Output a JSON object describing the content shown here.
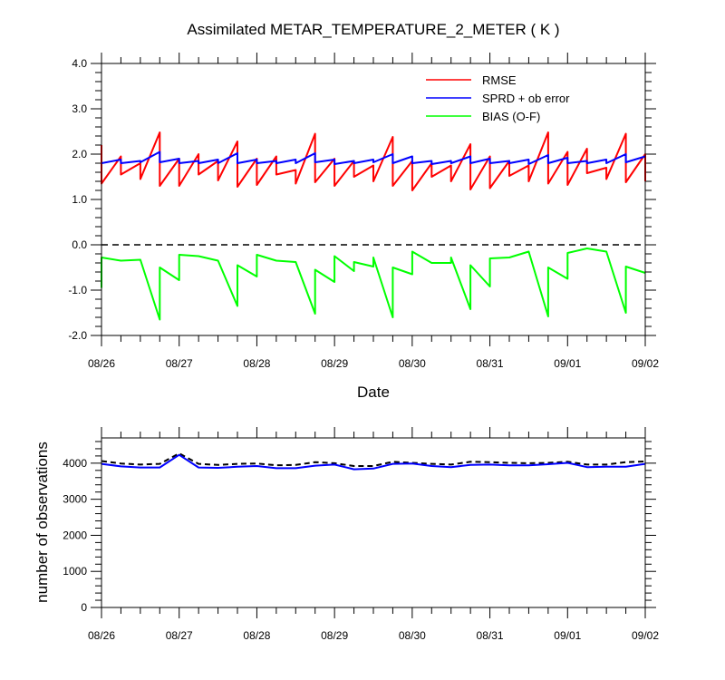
{
  "title": "Assimilated METAR_TEMPERATURE_2_METER ( K )",
  "chart_data": [
    {
      "type": "line",
      "xlabel": "Date",
      "ylabel": "",
      "xlim": [
        "08/26",
        "09/02"
      ],
      "ylim": [
        -2.0,
        4.0
      ],
      "yticks": [
        "4.0",
        "3.0",
        "2.0",
        "1.0",
        "0.0",
        "-1.0",
        "-2.0"
      ],
      "xticks": [
        "08/26",
        "08/27",
        "08/28",
        "08/29",
        "08/30",
        "08/31",
        "09/01",
        "09/02"
      ],
      "legend_position": "top-right",
      "reference_line": {
        "y": 0.0,
        "style": "dashed",
        "color": "#000000"
      },
      "series": [
        {
          "name": "RMSE",
          "color": "#ff0000",
          "points": [
            [
              "08/26 00Z",
              2.2
            ],
            [
              "08/26 00Z",
              1.35
            ],
            [
              "08/26 06Z",
              1.95
            ],
            [
              "08/26 06Z",
              1.55
            ],
            [
              "08/26 12Z",
              1.8
            ],
            [
              "08/26 12Z",
              1.45
            ],
            [
              "08/26 18Z",
              2.48
            ],
            [
              "08/26 18Z",
              1.3
            ],
            [
              "08/27 00Z",
              1.9
            ],
            [
              "08/27 00Z",
              1.3
            ],
            [
              "08/27 06Z",
              2.0
            ],
            [
              "08/27 06Z",
              1.55
            ],
            [
              "08/27 12Z",
              1.85
            ],
            [
              "08/27 12Z",
              1.42
            ],
            [
              "08/27 18Z",
              2.28
            ],
            [
              "08/27 18Z",
              1.28
            ],
            [
              "08/28 00Z",
              1.9
            ],
            [
              "08/28 00Z",
              1.32
            ],
            [
              "08/28 06Z",
              1.95
            ],
            [
              "08/28 06Z",
              1.55
            ],
            [
              "08/28 12Z",
              1.65
            ],
            [
              "08/28 12Z",
              1.35
            ],
            [
              "08/28 18Z",
              2.45
            ],
            [
              "08/28 18Z",
              1.38
            ],
            [
              "08/29 00Z",
              1.9
            ],
            [
              "08/29 00Z",
              1.3
            ],
            [
              "08/29 06Z",
              1.85
            ],
            [
              "08/29 06Z",
              1.5
            ],
            [
              "08/29 12Z",
              1.75
            ],
            [
              "08/29 12Z",
              1.4
            ],
            [
              "08/29 18Z",
              2.38
            ],
            [
              "08/29 18Z",
              1.3
            ],
            [
              "08/30 00Z",
              1.85
            ],
            [
              "08/30 00Z",
              1.2
            ],
            [
              "08/30 06Z",
              1.8
            ],
            [
              "08/30 06Z",
              1.5
            ],
            [
              "08/30 12Z",
              1.75
            ],
            [
              "08/30 12Z",
              1.4
            ],
            [
              "08/30 18Z",
              2.22
            ],
            [
              "08/30 18Z",
              1.22
            ],
            [
              "08/31 00Z",
              1.95
            ],
            [
              "08/31 00Z",
              1.25
            ],
            [
              "08/31 06Z",
              1.85
            ],
            [
              "08/31 06Z",
              1.52
            ],
            [
              "08/31 12Z",
              1.75
            ],
            [
              "08/31 12Z",
              1.4
            ],
            [
              "08/31 18Z",
              2.48
            ],
            [
              "08/31 18Z",
              1.35
            ],
            [
              "09/01 00Z",
              2.05
            ],
            [
              "09/01 00Z",
              1.32
            ],
            [
              "09/01 06Z",
              2.12
            ],
            [
              "09/01 06Z",
              1.58
            ],
            [
              "09/01 12Z",
              1.7
            ],
            [
              "09/01 12Z",
              1.45
            ],
            [
              "09/01 18Z",
              2.45
            ],
            [
              "09/01 18Z",
              1.38
            ],
            [
              "09/02 00Z",
              2.0
            ],
            [
              "09/02 00Z",
              1.4
            ]
          ]
        },
        {
          "name": "SPRD + ob error",
          "color": "#0000ff",
          "points": [
            [
              "08/26 00Z",
              1.8
            ],
            [
              "08/26 06Z",
              1.88
            ],
            [
              "08/26 06Z",
              1.8
            ],
            [
              "08/26 12Z",
              1.85
            ],
            [
              "08/26 12Z",
              1.82
            ],
            [
              "08/26 18Z",
              2.05
            ],
            [
              "08/26 18Z",
              1.82
            ],
            [
              "08/27 00Z",
              1.9
            ],
            [
              "08/27 00Z",
              1.8
            ],
            [
              "08/27 06Z",
              1.85
            ],
            [
              "08/27 06Z",
              1.8
            ],
            [
              "08/27 12Z",
              1.88
            ],
            [
              "08/27 12Z",
              1.8
            ],
            [
              "08/27 18Z",
              2.02
            ],
            [
              "08/27 18Z",
              1.8
            ],
            [
              "08/28 00Z",
              1.88
            ],
            [
              "08/28 00Z",
              1.8
            ],
            [
              "08/28 06Z",
              1.85
            ],
            [
              "08/28 06Z",
              1.8
            ],
            [
              "08/28 12Z",
              1.88
            ],
            [
              "08/28 12Z",
              1.8
            ],
            [
              "08/28 18Z",
              2.02
            ],
            [
              "08/28 18Z",
              1.82
            ],
            [
              "08/29 00Z",
              1.88
            ],
            [
              "08/29 00Z",
              1.78
            ],
            [
              "08/29 06Z",
              1.85
            ],
            [
              "08/29 06Z",
              1.8
            ],
            [
              "08/29 12Z",
              1.88
            ],
            [
              "08/29 12Z",
              1.82
            ],
            [
              "08/29 18Z",
              2.0
            ],
            [
              "08/29 18Z",
              1.8
            ],
            [
              "08/30 00Z",
              1.95
            ],
            [
              "08/30 00Z",
              1.8
            ],
            [
              "08/30 06Z",
              1.85
            ],
            [
              "08/30 06Z",
              1.78
            ],
            [
              "08/30 12Z",
              1.85
            ],
            [
              "08/30 12Z",
              1.8
            ],
            [
              "08/30 18Z",
              1.95
            ],
            [
              "08/30 18Z",
              1.8
            ],
            [
              "08/31 00Z",
              1.9
            ],
            [
              "08/31 00Z",
              1.8
            ],
            [
              "08/31 06Z",
              1.85
            ],
            [
              "08/31 06Z",
              1.8
            ],
            [
              "08/31 12Z",
              1.88
            ],
            [
              "08/31 12Z",
              1.78
            ],
            [
              "08/31 18Z",
              1.98
            ],
            [
              "08/31 18Z",
              1.8
            ],
            [
              "09/01 00Z",
              1.92
            ],
            [
              "09/01 00Z",
              1.8
            ],
            [
              "09/01 06Z",
              1.85
            ],
            [
              "09/01 06Z",
              1.8
            ],
            [
              "09/01 12Z",
              1.88
            ],
            [
              "09/01 12Z",
              1.8
            ],
            [
              "09/01 18Z",
              2.0
            ],
            [
              "09/01 18Z",
              1.82
            ],
            [
              "09/02 00Z",
              1.95
            ]
          ]
        },
        {
          "name": "BIAS (O-F)",
          "color": "#00ff00",
          "points": [
            [
              "08/26 00Z",
              -0.95
            ],
            [
              "08/26 00Z",
              -0.28
            ],
            [
              "08/26 06Z",
              -0.35
            ],
            [
              "08/26 12Z",
              -0.33
            ],
            [
              "08/26 18Z",
              -1.65
            ],
            [
              "08/26 18Z",
              -0.5
            ],
            [
              "08/27 00Z",
              -0.78
            ],
            [
              "08/27 00Z",
              -0.22
            ],
            [
              "08/27 06Z",
              -0.25
            ],
            [
              "08/27 12Z",
              -0.35
            ],
            [
              "08/27 18Z",
              -1.35
            ],
            [
              "08/27 18Z",
              -0.45
            ],
            [
              "08/28 00Z",
              -0.7
            ],
            [
              "08/28 00Z",
              -0.22
            ],
            [
              "08/28 06Z",
              -0.35
            ],
            [
              "08/28 12Z",
              -0.38
            ],
            [
              "08/28 18Z",
              -1.52
            ],
            [
              "08/28 18Z",
              -0.55
            ],
            [
              "08/29 00Z",
              -0.82
            ],
            [
              "08/29 00Z",
              -0.25
            ],
            [
              "08/29 06Z",
              -0.58
            ],
            [
              "08/29 06Z",
              -0.38
            ],
            [
              "08/29 12Z",
              -0.48
            ],
            [
              "08/29 12Z",
              -0.28
            ],
            [
              "08/29 18Z",
              -1.6
            ],
            [
              "08/29 18Z",
              -0.5
            ],
            [
              "08/30 00Z",
              -0.65
            ],
            [
              "08/30 00Z",
              -0.15
            ],
            [
              "08/30 06Z",
              -0.4
            ],
            [
              "08/30 12Z",
              -0.4
            ],
            [
              "08/30 12Z",
              -0.28
            ],
            [
              "08/30 18Z",
              -1.42
            ],
            [
              "08/30 18Z",
              -0.45
            ],
            [
              "08/31 00Z",
              -0.92
            ],
            [
              "08/31 00Z",
              -0.3
            ],
            [
              "08/31 06Z",
              -0.28
            ],
            [
              "08/31 12Z",
              -0.15
            ],
            [
              "08/31 18Z",
              -1.58
            ],
            [
              "08/31 18Z",
              -0.5
            ],
            [
              "09/01 00Z",
              -0.75
            ],
            [
              "09/01 00Z",
              -0.18
            ],
            [
              "09/01 06Z",
              -0.08
            ],
            [
              "09/01 12Z",
              -0.15
            ],
            [
              "09/01 18Z",
              -1.5
            ],
            [
              "09/01 18Z",
              -0.48
            ],
            [
              "09/02 00Z",
              -0.62
            ]
          ]
        }
      ]
    },
    {
      "type": "line",
      "xlabel": "",
      "ylabel": "number of observations",
      "xlim": [
        "08/26",
        "09/02"
      ],
      "ylim": [
        0,
        4700
      ],
      "yticks": [
        "4000",
        "3000",
        "2000",
        "1000",
        "0"
      ],
      "xticks": [
        "08/26",
        "08/27",
        "08/28",
        "08/29",
        "08/30",
        "08/31",
        "09/01",
        "09/02"
      ],
      "series": [
        {
          "style": "dashed",
          "color": "#000000",
          "points": [
            [
              "08/26 00Z",
              4060
            ],
            [
              "08/26 06Z",
              3990
            ],
            [
              "08/26 12Z",
              3960
            ],
            [
              "08/26 18Z",
              3980
            ],
            [
              "08/27 00Z",
              4270
            ],
            [
              "08/27 06Z",
              3980
            ],
            [
              "08/27 12Z",
              3950
            ],
            [
              "08/27 18Z",
              3980
            ],
            [
              "08/28 00Z",
              3990
            ],
            [
              "08/28 06Z",
              3940
            ],
            [
              "08/28 12Z",
              3950
            ],
            [
              "08/28 18Z",
              4030
            ],
            [
              "08/29 00Z",
              4000
            ],
            [
              "08/29 06Z",
              3920
            ],
            [
              "08/29 12Z",
              3920
            ],
            [
              "08/29 18Z",
              4040
            ],
            [
              "08/30 00Z",
              4010
            ],
            [
              "08/30 06Z",
              3980
            ],
            [
              "08/30 12Z",
              3960
            ],
            [
              "08/30 18Z",
              4040
            ],
            [
              "08/31 00Z",
              4030
            ],
            [
              "08/31 06Z",
              4010
            ],
            [
              "08/31 12Z",
              4000
            ],
            [
              "08/31 18Z",
              4010
            ],
            [
              "09/01 00Z",
              4040
            ],
            [
              "09/01 06Z",
              3960
            ],
            [
              "09/01 12Z",
              3960
            ],
            [
              "09/01 18Z",
              4030
            ],
            [
              "09/02 00Z",
              4050
            ]
          ]
        },
        {
          "style": "solid",
          "color": "#0000ff",
          "points": [
            [
              "08/26 00Z",
              3980
            ],
            [
              "08/26 06Z",
              3910
            ],
            [
              "08/26 12Z",
              3880
            ],
            [
              "08/26 18Z",
              3880
            ],
            [
              "08/27 00Z",
              4230
            ],
            [
              "08/27 06Z",
              3880
            ],
            [
              "08/27 12Z",
              3870
            ],
            [
              "08/27 18Z",
              3900
            ],
            [
              "08/28 00Z",
              3920
            ],
            [
              "08/28 06Z",
              3860
            ],
            [
              "08/28 12Z",
              3860
            ],
            [
              "08/28 18Z",
              3930
            ],
            [
              "08/29 00Z",
              3960
            ],
            [
              "08/29 06Z",
              3830
            ],
            [
              "08/29 12Z",
              3850
            ],
            [
              "08/29 18Z",
              3980
            ],
            [
              "08/30 00Z",
              3990
            ],
            [
              "08/30 06Z",
              3920
            ],
            [
              "08/30 12Z",
              3890
            ],
            [
              "08/30 18Z",
              3950
            ],
            [
              "08/31 00Z",
              3960
            ],
            [
              "08/31 06Z",
              3940
            ],
            [
              "08/31 12Z",
              3940
            ],
            [
              "08/31 18Z",
              3970
            ],
            [
              "09/01 00Z",
              4010
            ],
            [
              "09/01 06Z",
              3890
            ],
            [
              "09/01 12Z",
              3900
            ],
            [
              "09/01 18Z",
              3900
            ],
            [
              "09/02 00Z",
              3980
            ]
          ]
        }
      ]
    }
  ]
}
